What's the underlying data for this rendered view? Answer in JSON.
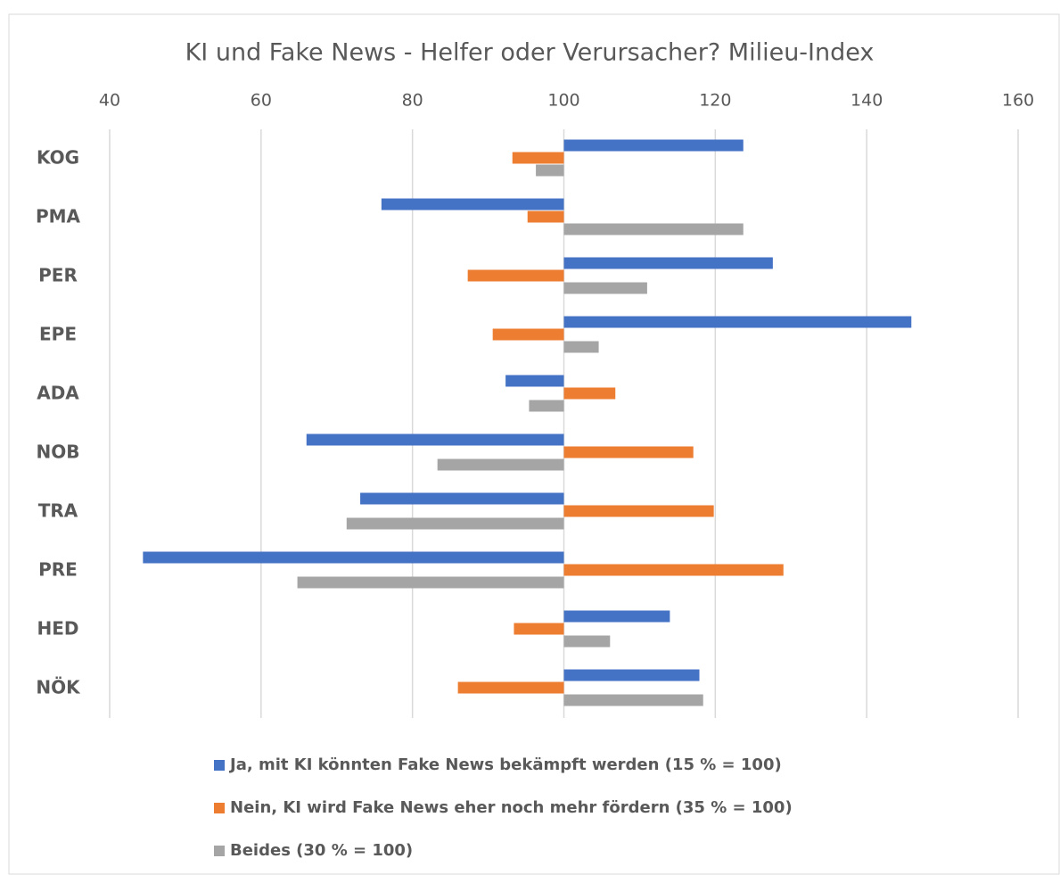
{
  "chart_data": {
    "type": "hbar",
    "title": "KI und Fake News - Helfer oder Verursacher? Milieu-Index",
    "categories": [
      "KOG",
      "PMA",
      "PER",
      "EPE",
      "ADA",
      "NOB",
      "TRA",
      "PRE",
      "HED",
      "NÖK"
    ],
    "series": [
      {
        "name": "Ja, mit KI könnten Fake News bekämpft werden (15 % = 100)",
        "color": "#4472c4",
        "values": [
          123.7,
          75.9,
          127.6,
          145.9,
          92.3,
          66.0,
          73.1,
          44.4,
          114.0,
          117.9
        ]
      },
      {
        "name": "Nein, KI wird Fake News eher noch mehr fördern (35 % = 100)",
        "color": "#ed7d31",
        "values": [
          93.2,
          95.2,
          87.3,
          90.6,
          106.8,
          117.1,
          119.8,
          129.0,
          93.4,
          86.0
        ]
      },
      {
        "name": "Beides  (30 % = 100)",
        "color": "#a5a5a5",
        "values": [
          96.3,
          123.7,
          111.0,
          104.6,
          95.4,
          83.3,
          71.3,
          64.8,
          106.1,
          118.4
        ]
      }
    ],
    "bar_base": 100,
    "xlim": [
      40,
      160
    ],
    "xticks": [
      40,
      60,
      80,
      100,
      120,
      140,
      160
    ],
    "grid": true,
    "legend": "bottom"
  }
}
